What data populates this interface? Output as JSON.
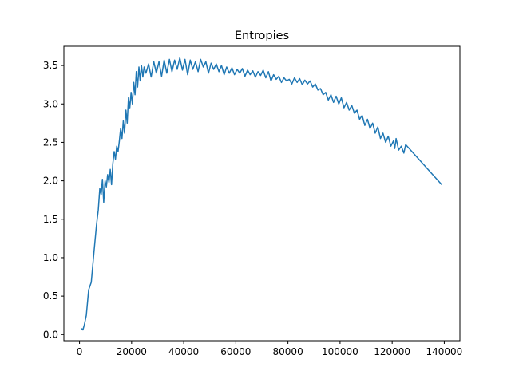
{
  "chart_data": {
    "type": "line",
    "title": "Entropies",
    "xlabel": "",
    "ylabel": "",
    "xlim": [
      -6000,
      146000
    ],
    "ylim": [
      -0.08,
      3.75
    ],
    "x_ticks": [
      0,
      20000,
      40000,
      60000,
      80000,
      100000,
      120000,
      140000
    ],
    "x_tick_labels": [
      "0",
      "20000",
      "40000",
      "60000",
      "80000",
      "100000",
      "120000",
      "140000"
    ],
    "y_ticks": [
      0.0,
      0.5,
      1.0,
      1.5,
      2.0,
      2.5,
      3.0,
      3.5
    ],
    "y_tick_labels": [
      "0.0",
      "0.5",
      "1.0",
      "1.5",
      "2.0",
      "2.5",
      "3.0",
      "3.5"
    ],
    "grid": false,
    "series": [
      {
        "color": "#1f77b4",
        "x": [
          800,
          1300,
          1800,
          2600,
          3500,
          4500,
          5500,
          6500,
          7200,
          7800,
          8300,
          8800,
          9300,
          9800,
          10300,
          10800,
          11300,
          11800,
          12300,
          12800,
          13300,
          13800,
          14300,
          14800,
          15300,
          15800,
          16300,
          16800,
          17300,
          17800,
          18300,
          18800,
          19300,
          19800,
          20300,
          20800,
          21300,
          21800,
          22300,
          22800,
          23300,
          23800,
          24300,
          24800,
          25500,
          26500,
          27500,
          28500,
          29500,
          30500,
          31500,
          32500,
          33500,
          34500,
          35500,
          36500,
          37500,
          38500,
          39500,
          40500,
          41500,
          42500,
          43500,
          44500,
          45500,
          46500,
          47500,
          48500,
          49500,
          50500,
          51500,
          52500,
          53500,
          54500,
          55500,
          56500,
          57500,
          58500,
          59500,
          60500,
          61500,
          62500,
          63500,
          64500,
          65500,
          66500,
          67500,
          68500,
          69500,
          70500,
          71500,
          72500,
          73500,
          74500,
          75500,
          76500,
          77500,
          78500,
          79500,
          80500,
          81500,
          82500,
          83500,
          84500,
          85500,
          86500,
          87500,
          88500,
          89500,
          90500,
          91500,
          92500,
          93500,
          94500,
          95500,
          96500,
          97500,
          98500,
          99500,
          100500,
          101500,
          102500,
          103500,
          104500,
          105500,
          106500,
          107500,
          108500,
          109500,
          110500,
          111500,
          112500,
          113500,
          114500,
          115500,
          116500,
          117500,
          118500,
          119500,
          120500,
          121000,
          121500,
          122500,
          123500,
          124500,
          125200,
          139000
        ],
        "values": [
          0.08,
          0.06,
          0.12,
          0.25,
          0.58,
          0.68,
          1.05,
          1.42,
          1.62,
          1.9,
          1.82,
          2.02,
          1.72,
          2.0,
          1.92,
          2.08,
          1.98,
          2.15,
          1.95,
          2.22,
          2.38,
          2.28,
          2.45,
          2.38,
          2.52,
          2.68,
          2.55,
          2.78,
          2.62,
          2.92,
          2.75,
          3.08,
          2.95,
          3.15,
          3.0,
          3.28,
          3.12,
          3.42,
          3.22,
          3.48,
          3.3,
          3.5,
          3.35,
          3.48,
          3.4,
          3.52,
          3.35,
          3.55,
          3.4,
          3.55,
          3.36,
          3.57,
          3.4,
          3.58,
          3.42,
          3.57,
          3.45,
          3.6,
          3.44,
          3.58,
          3.38,
          3.57,
          3.45,
          3.55,
          3.42,
          3.58,
          3.48,
          3.55,
          3.4,
          3.53,
          3.45,
          3.52,
          3.42,
          3.5,
          3.38,
          3.48,
          3.4,
          3.47,
          3.38,
          3.45,
          3.4,
          3.46,
          3.36,
          3.44,
          3.38,
          3.43,
          3.35,
          3.42,
          3.37,
          3.44,
          3.34,
          3.42,
          3.3,
          3.38,
          3.32,
          3.36,
          3.28,
          3.34,
          3.3,
          3.32,
          3.26,
          3.34,
          3.28,
          3.33,
          3.25,
          3.31,
          3.26,
          3.3,
          3.22,
          3.26,
          3.18,
          3.2,
          3.12,
          3.15,
          3.05,
          3.12,
          3.02,
          3.1,
          3.0,
          3.08,
          2.95,
          3.02,
          2.92,
          2.98,
          2.88,
          2.92,
          2.8,
          2.85,
          2.72,
          2.8,
          2.68,
          2.75,
          2.62,
          2.7,
          2.55,
          2.62,
          2.5,
          2.58,
          2.45,
          2.52,
          2.42,
          2.55,
          2.4,
          2.45,
          2.36,
          2.47,
          1.95
        ]
      }
    ]
  }
}
